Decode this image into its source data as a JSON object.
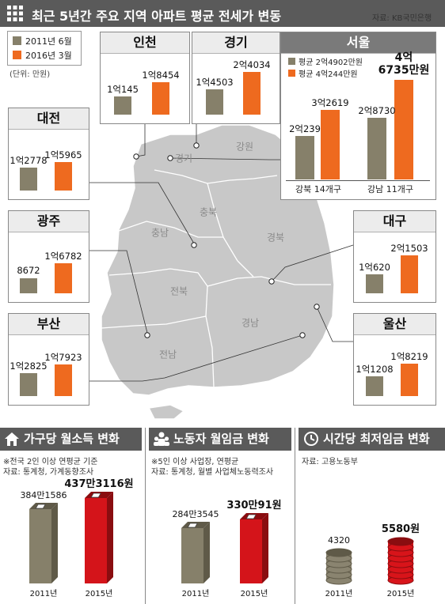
{
  "header": {
    "title": "최근 5년간 주요 지역 아파트 평균 전세가 변동",
    "source": "자료: KB국민은행"
  },
  "legend": {
    "item_2011": "2011년 6월",
    "item_2016": "2016년 3월",
    "unit": "(단위: 만원)"
  },
  "colors": {
    "old": "#86806a",
    "new": "#ee6a1f",
    "lowincome": "#86806a",
    "highincome": "#d4141a",
    "header_bg": "#5a5a5a"
  },
  "map_labels": {
    "gangwon": "강원",
    "gyeonggi": "경기",
    "chungbuk": "충북",
    "chungnam": "충남",
    "gyeongbuk": "경북",
    "jeonbuk": "전북",
    "gyeongnam": "경남",
    "jeonnam": "전남"
  },
  "chart_data": [
    {
      "type": "bar",
      "title": "최근 5년간 주요 지역 아파트 평균 전세가 변동",
      "unit": "(단위: 만원)",
      "series_names": [
        "2011년 6월",
        "2016년 3월"
      ],
      "regions": [
        {
          "key": "incheon",
          "name": "인천",
          "labels": [
            "1억145",
            "1억8454"
          ],
          "values": [
            10145,
            18454
          ]
        },
        {
          "key": "gyeonggi",
          "name": "경기",
          "labels": [
            "1억4503",
            "2억4034"
          ],
          "values": [
            14503,
            24034
          ]
        },
        {
          "key": "daejeon",
          "name": "대전",
          "labels": [
            "1억2778",
            "1억5965"
          ],
          "values": [
            12778,
            15965
          ]
        },
        {
          "key": "gwangju",
          "name": "광주",
          "labels": [
            "8672",
            "1억6782"
          ],
          "values": [
            8672,
            16782
          ]
        },
        {
          "key": "busan",
          "name": "부산",
          "labels": [
            "1억2825",
            "1억7923"
          ],
          "values": [
            12825,
            17923
          ]
        },
        {
          "key": "daegu",
          "name": "대구",
          "labels": [
            "1억620",
            "2억1503"
          ],
          "values": [
            10620,
            21503
          ]
        },
        {
          "key": "ulsan",
          "name": "울산",
          "labels": [
            "1억1208",
            "1억8219"
          ],
          "values": [
            11208,
            18219
          ]
        }
      ],
      "seoul": {
        "name": "서울",
        "avg_2011": "평균 2억4902만원",
        "avg_2016": "평균 4억244만원",
        "groups": [
          {
            "name": "강북 14개구",
            "labels": [
              "2억239",
              "3억2619"
            ],
            "values": [
              20239,
              32619
            ]
          },
          {
            "name": "강남 11개구",
            "labels": [
              "2억8730",
              "4억\n6735만원"
            ],
            "values": [
              28730,
              46735
            ]
          }
        ]
      }
    },
    {
      "type": "bar",
      "title": "가구당 월소득 변화",
      "note1": "※전국 2인 이상 연평균 기준",
      "note2": "자료: 통계청, 가계동향조사",
      "categories": [
        "2011년",
        "2015년"
      ],
      "labels": [
        "384만1586",
        "437만3116원"
      ],
      "values": [
        3841586,
        4373116
      ]
    },
    {
      "type": "bar",
      "title": "노동자 월임금 변화",
      "note1": "※5인 이상 사업장, 연평균",
      "note2": "자료: 통계청, 월별 사업체노동력조사",
      "categories": [
        "2011년",
        "2015년"
      ],
      "labels": [
        "284만3545",
        "330만91원"
      ],
      "values": [
        2843545,
        3300091
      ]
    },
    {
      "type": "bar",
      "title": "시간당 최저임금 변화",
      "note1": "자료: 고용노동부",
      "note2": "",
      "categories": [
        "2011년",
        "2015년"
      ],
      "labels": [
        "4320",
        "5580원"
      ],
      "values": [
        4320,
        5580
      ]
    }
  ]
}
